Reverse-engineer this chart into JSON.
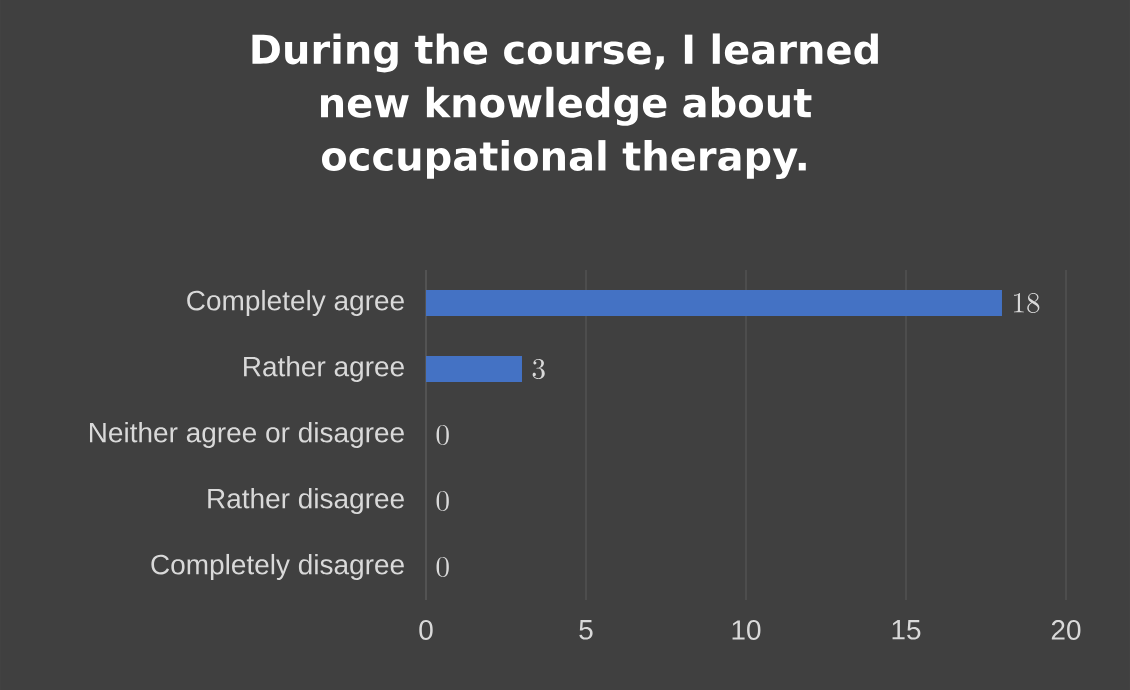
{
  "chart_data": {
    "type": "bar",
    "orientation": "horizontal",
    "title": "During the course, I learned new knowledge about occupational therapy.",
    "categories": [
      "Completely agree",
      "Rather agree",
      "Neither agree or disagree",
      "Rather disagree",
      "Completely disagree"
    ],
    "values": [
      18,
      3,
      0,
      0,
      0
    ],
    "color": "#4472c4",
    "xlim": [
      0,
      20
    ],
    "xticks": [
      0,
      5,
      10,
      15,
      20
    ],
    "grid": "x",
    "data_labels": true
  }
}
